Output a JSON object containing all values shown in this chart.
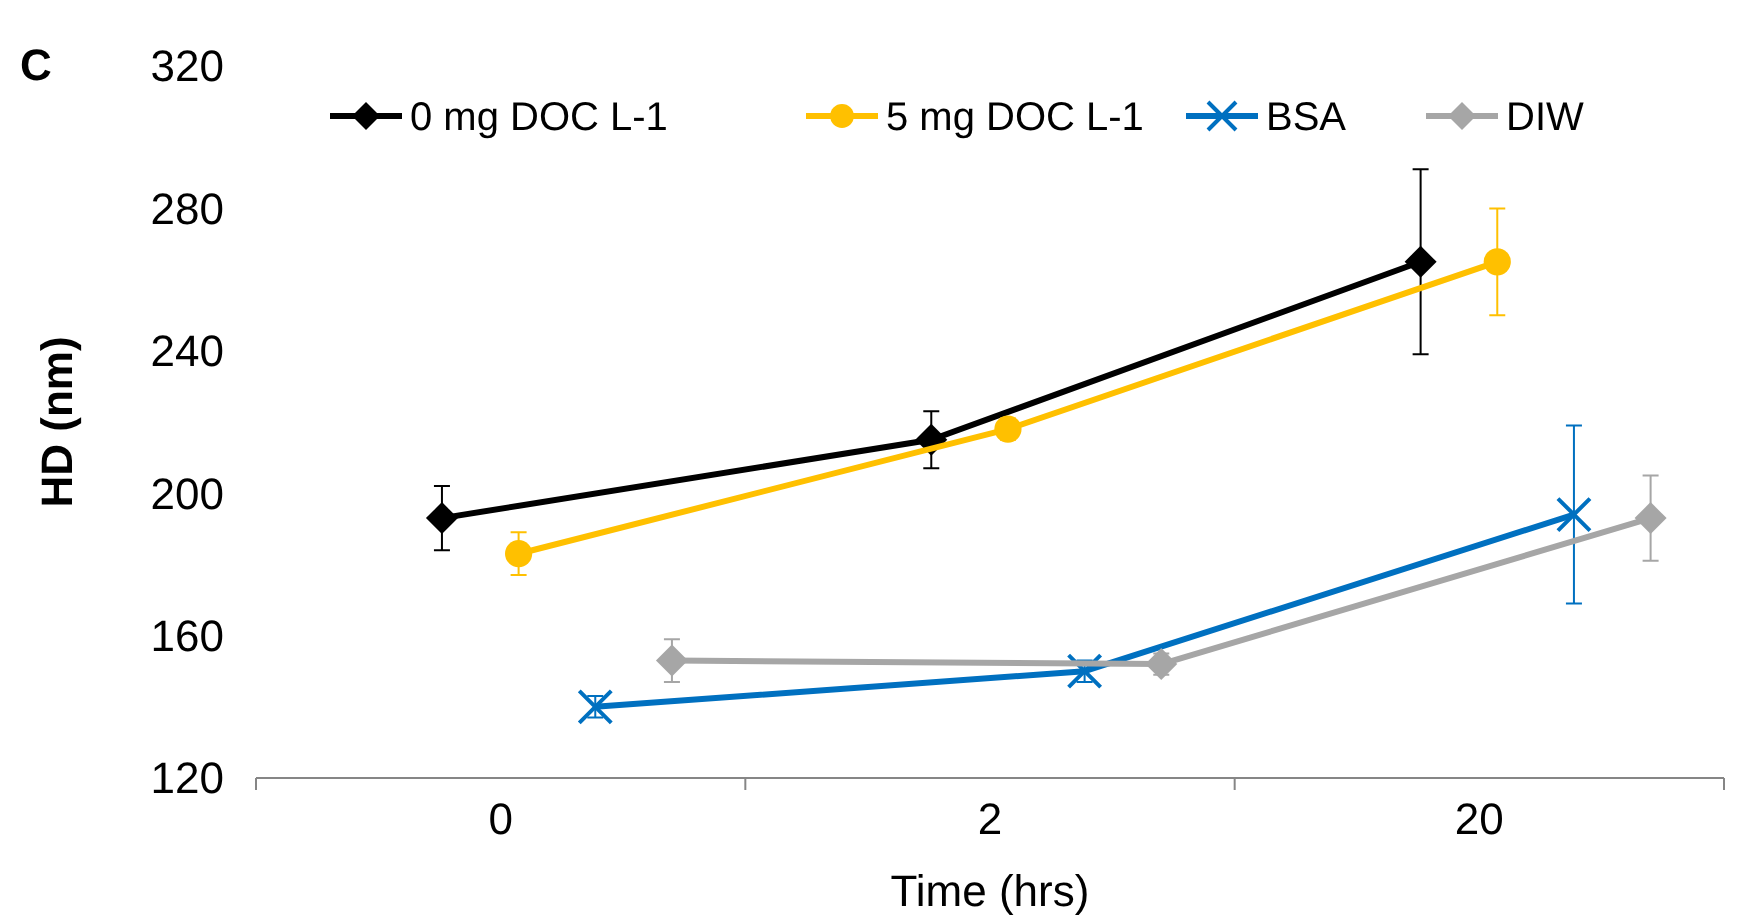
{
  "chart_data": {
    "type": "line",
    "xlabel": "Time (hrs)",
    "ylabel": "HD (nm)",
    "annotations": [
      "C"
    ],
    "categories": [
      "0",
      "2",
      "20"
    ],
    "ylim": [
      120,
      320
    ],
    "yticks": [
      120,
      160,
      200,
      240,
      280,
      320
    ],
    "grid": false,
    "legend": "top",
    "series": [
      {
        "name": "0 mg DOC  L-1",
        "color": "#000000",
        "marker": "diamond",
        "values": [
          193,
          215,
          265
        ],
        "errors": [
          9,
          8,
          26
        ]
      },
      {
        "name": "5 mg DOC  L-1",
        "color": "#ffc000",
        "marker": "circle",
        "values": [
          183,
          218,
          265
        ],
        "errors": [
          6,
          3,
          15
        ]
      },
      {
        "name": "BSA",
        "color": "#0070c0",
        "marker": "cross",
        "values": [
          140,
          150,
          194
        ],
        "errors": [
          3,
          3,
          25
        ]
      },
      {
        "name": "DIW",
        "color": "#a6a6a6",
        "marker": "diamond",
        "values": [
          153,
          152,
          193
        ],
        "errors": [
          6,
          3,
          12
        ]
      }
    ]
  }
}
